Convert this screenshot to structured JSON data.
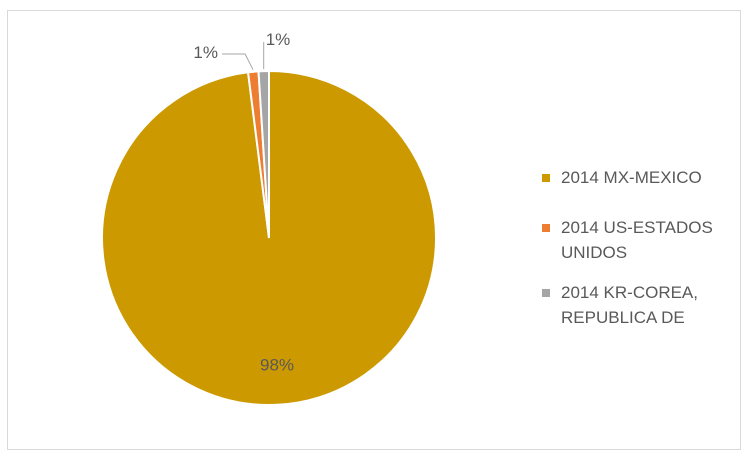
{
  "chart_data": {
    "type": "pie",
    "title": "",
    "legend_position": "right",
    "slices": [
      {
        "label": "2014 MX-MEXICO",
        "value": 98,
        "data_label": "98%",
        "color": "#cc9900"
      },
      {
        "label": "2014 US-ESTADOS UNIDOS",
        "value": 1,
        "data_label": "1%",
        "color": "#ed7d31"
      },
      {
        "label": "2014 KR-COREA, REPUBLICA DE",
        "value": 1,
        "data_label": "1%",
        "color": "#a5a5a5"
      }
    ]
  },
  "legend": {
    "items": [
      {
        "line1": "2014 MX-MEXICO",
        "line2": ""
      },
      {
        "line1": "2014 US-ESTADOS",
        "line2": "UNIDOS"
      },
      {
        "line1": "2014 KR-COREA,",
        "line2": "REPUBLICA DE"
      }
    ]
  }
}
